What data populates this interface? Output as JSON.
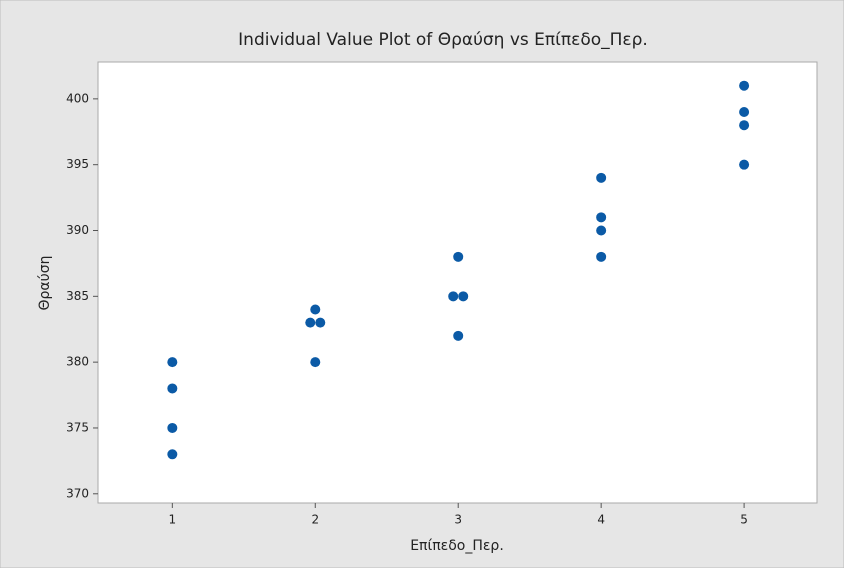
{
  "chart_data": {
    "type": "scatter",
    "title": "Individual Value Plot of Θραύση vs Επίπεδο_Περ.",
    "x_label": "Επίπεδο_Περ.",
    "y_label": "Θραύση",
    "x": [
      1,
      1,
      1,
      1,
      2,
      2,
      2,
      2,
      3,
      3,
      3,
      3,
      4,
      4,
      4,
      4,
      5,
      5,
      5,
      5
    ],
    "values": [
      380,
      378,
      375,
      373,
      384,
      383,
      383,
      380,
      388,
      385,
      385,
      382,
      394,
      391,
      390,
      388,
      401,
      399,
      398,
      395
    ],
    "color": "#0b5aa6",
    "xlim": [
      0.48,
      5.51
    ],
    "xticks": [
      1,
      2,
      3,
      4,
      5
    ],
    "ylim": [
      369.3,
      402.8
    ],
    "yticks": [
      370,
      375,
      380,
      385,
      390,
      395,
      400
    ]
  }
}
